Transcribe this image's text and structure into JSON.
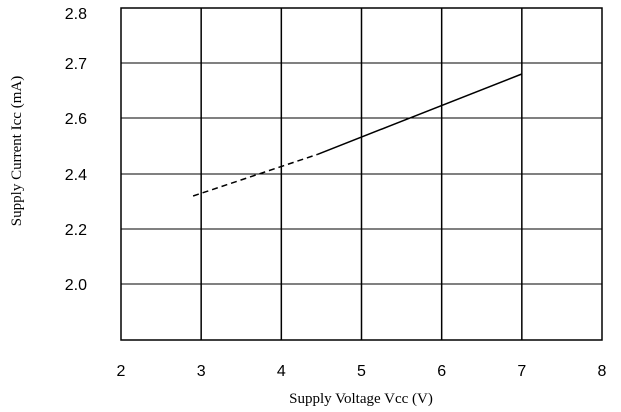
{
  "chart_data": {
    "type": "line",
    "xlabel": "Supply Voltage Vcc (V)",
    "ylabel": "Supply Current Icc (mA)",
    "x_ticks": [
      "2",
      "3",
      "4",
      "5",
      "6",
      "7",
      "8"
    ],
    "y_ticks": [
      "2.0",
      "2.2",
      "2.4",
      "2.6",
      "2.7",
      "2.8"
    ],
    "xlim": [
      2,
      8
    ],
    "grid": true,
    "series": [
      {
        "style": "dashed",
        "points": [
          {
            "x": 2.9,
            "y": 2.32
          },
          {
            "x": 4.45,
            "y": 2.47
          }
        ]
      },
      {
        "style": "solid",
        "points": [
          {
            "x": 4.45,
            "y": 2.47
          },
          {
            "x": 7.0,
            "y": 2.68
          }
        ]
      }
    ]
  }
}
